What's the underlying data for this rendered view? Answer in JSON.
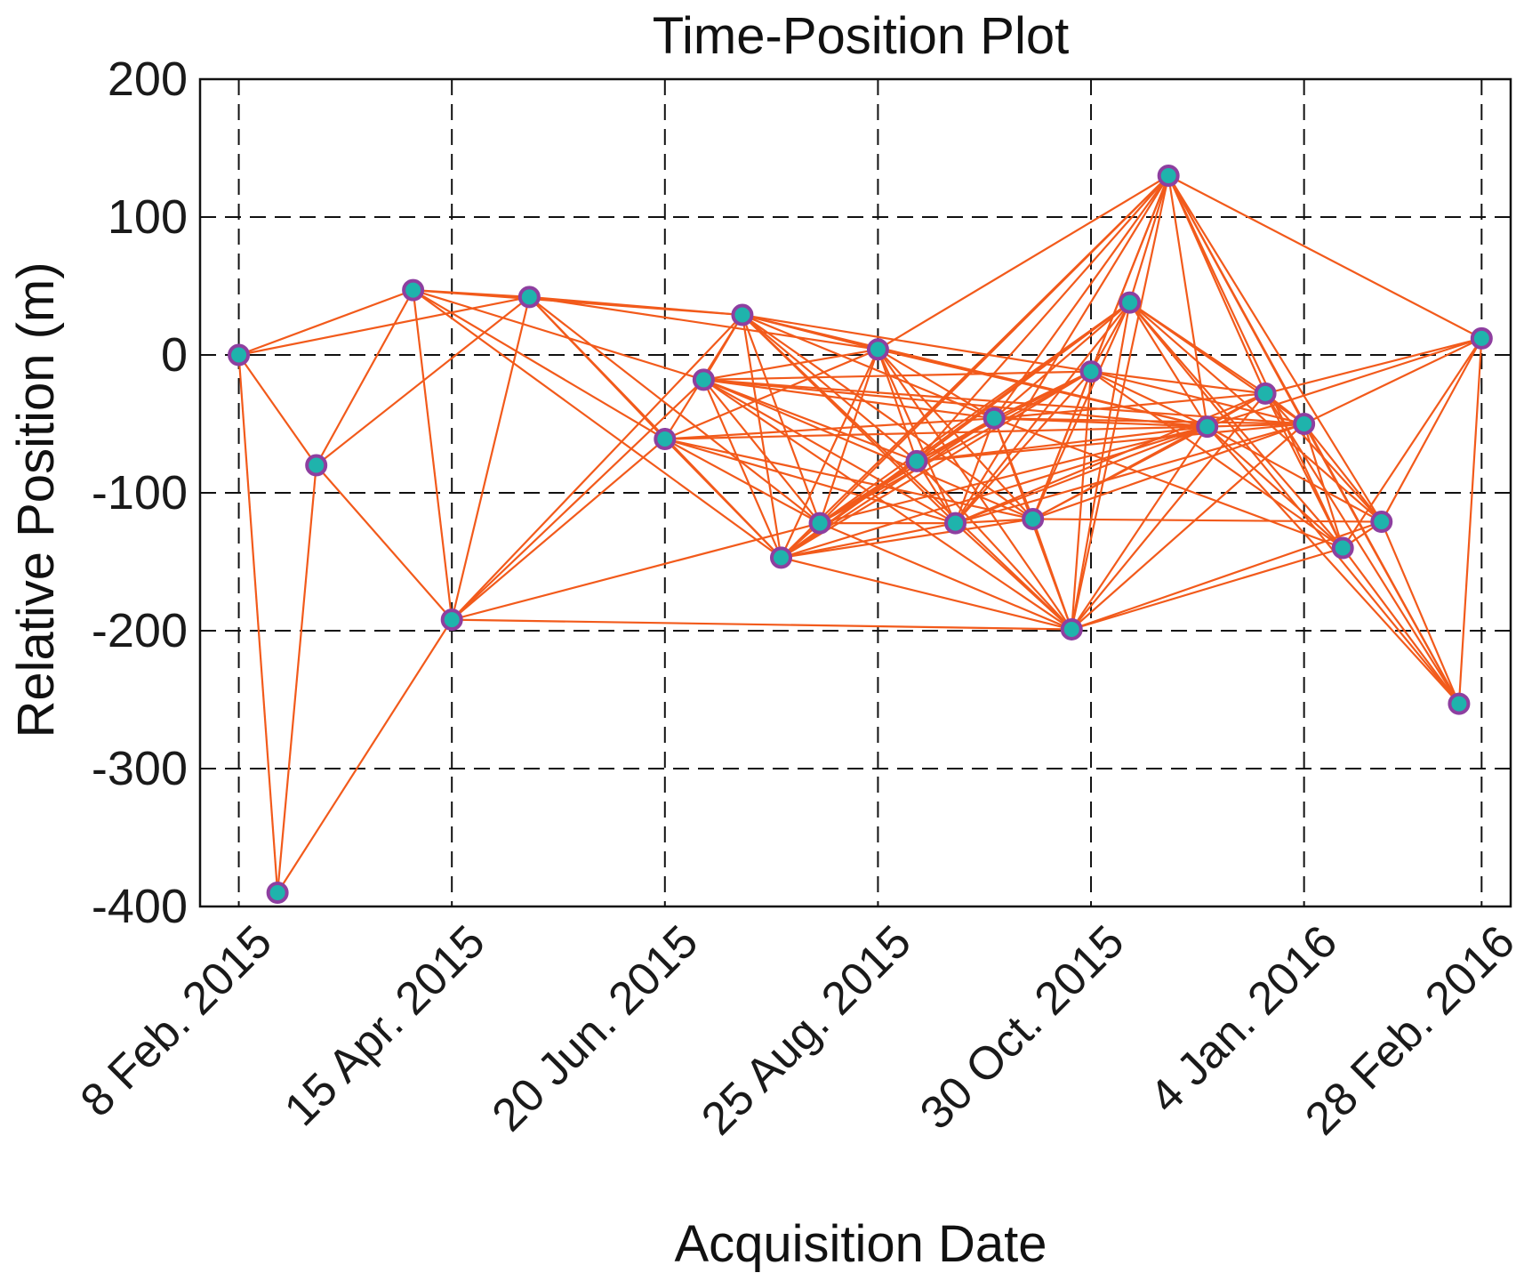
{
  "chart_data": {
    "type": "scatter",
    "title": "Time-Position Plot",
    "xlabel": "Acquisition Date",
    "ylabel": "Relative Position (m)",
    "ylim": [
      -400,
      200
    ],
    "yticks": [
      200,
      100,
      0,
      -100,
      -200,
      -300,
      -400
    ],
    "xlim": [
      "2015-01-27",
      "2016-03-08"
    ],
    "xticks": [
      {
        "date": "2015-02-08",
        "label": "8 Feb. 2015"
      },
      {
        "date": "2015-04-15",
        "label": "15 Apr. 2015"
      },
      {
        "date": "2015-06-20",
        "label": "20 Jun. 2015"
      },
      {
        "date": "2015-08-25",
        "label": "25 Aug. 2015"
      },
      {
        "date": "2015-10-30",
        "label": "30 Oct. 2015"
      },
      {
        "date": "2016-01-04",
        "label": "4 Jan. 2016"
      },
      {
        "date": "2016-02-28",
        "label": "28 Feb. 2016"
      }
    ],
    "grid": true,
    "grid_style": "dashed",
    "points": [
      {
        "date": "2015-02-08",
        "y": 0
      },
      {
        "date": "2015-02-20",
        "y": -390
      },
      {
        "date": "2015-03-04",
        "y": -80
      },
      {
        "date": "2015-04-03",
        "y": 47
      },
      {
        "date": "2015-04-15",
        "y": -192
      },
      {
        "date": "2015-05-09",
        "y": 42
      },
      {
        "date": "2015-06-20",
        "y": -61
      },
      {
        "date": "2015-07-02",
        "y": -18
      },
      {
        "date": "2015-07-14",
        "y": 29
      },
      {
        "date": "2015-07-26",
        "y": -147
      },
      {
        "date": "2015-08-07",
        "y": -122
      },
      {
        "date": "2015-08-25",
        "y": 4
      },
      {
        "date": "2015-09-06",
        "y": -77
      },
      {
        "date": "2015-09-18",
        "y": -122
      },
      {
        "date": "2015-09-30",
        "y": -46
      },
      {
        "date": "2015-10-12",
        "y": -119
      },
      {
        "date": "2015-10-24",
        "y": -199
      },
      {
        "date": "2015-10-30",
        "y": -12
      },
      {
        "date": "2015-11-11",
        "y": 38
      },
      {
        "date": "2015-11-23",
        "y": 130
      },
      {
        "date": "2015-12-05",
        "y": -52
      },
      {
        "date": "2015-12-23",
        "y": -28
      },
      {
        "date": "2016-01-04",
        "y": -50
      },
      {
        "date": "2016-01-16",
        "y": -140
      },
      {
        "date": "2016-01-28",
        "y": -121
      },
      {
        "date": "2016-02-21",
        "y": -253
      },
      {
        "date": "2016-02-28",
        "y": 12
      }
    ],
    "edges": [
      [
        0,
        1
      ],
      [
        0,
        2
      ],
      [
        0,
        3
      ],
      [
        0,
        5
      ],
      [
        1,
        2
      ],
      [
        1,
        4
      ],
      [
        2,
        3
      ],
      [
        2,
        4
      ],
      [
        2,
        5
      ],
      [
        3,
        4
      ],
      [
        3,
        5
      ],
      [
        3,
        6
      ],
      [
        3,
        7
      ],
      [
        3,
        8
      ],
      [
        3,
        9
      ],
      [
        4,
        5
      ],
      [
        4,
        6
      ],
      [
        4,
        7
      ],
      [
        4,
        8
      ],
      [
        4,
        10
      ],
      [
        4,
        16
      ],
      [
        5,
        6
      ],
      [
        5,
        8
      ],
      [
        5,
        9
      ],
      [
        5,
        10
      ],
      [
        5,
        11
      ],
      [
        6,
        8
      ],
      [
        6,
        9
      ],
      [
        6,
        10
      ],
      [
        6,
        11
      ],
      [
        6,
        13
      ],
      [
        6,
        14
      ],
      [
        6,
        15
      ],
      [
        6,
        20
      ],
      [
        7,
        8
      ],
      [
        7,
        9
      ],
      [
        7,
        10
      ],
      [
        7,
        11
      ],
      [
        7,
        12
      ],
      [
        7,
        13
      ],
      [
        7,
        14
      ],
      [
        7,
        15
      ],
      [
        7,
        16
      ],
      [
        7,
        17
      ],
      [
        7,
        20
      ],
      [
        7,
        22
      ],
      [
        8,
        9
      ],
      [
        8,
        10
      ],
      [
        8,
        11
      ],
      [
        8,
        12
      ],
      [
        8,
        13
      ],
      [
        8,
        14
      ],
      [
        8,
        15
      ],
      [
        8,
        16
      ],
      [
        8,
        17
      ],
      [
        8,
        20
      ],
      [
        9,
        10
      ],
      [
        9,
        11
      ],
      [
        9,
        12
      ],
      [
        9,
        13
      ],
      [
        9,
        14
      ],
      [
        9,
        15
      ],
      [
        9,
        16
      ],
      [
        9,
        17
      ],
      [
        9,
        18
      ],
      [
        9,
        19
      ],
      [
        9,
        20
      ],
      [
        10,
        11
      ],
      [
        10,
        12
      ],
      [
        10,
        13
      ],
      [
        10,
        14
      ],
      [
        10,
        16
      ],
      [
        10,
        17
      ],
      [
        10,
        18
      ],
      [
        10,
        19
      ],
      [
        10,
        20
      ],
      [
        11,
        12
      ],
      [
        11,
        13
      ],
      [
        11,
        14
      ],
      [
        11,
        15
      ],
      [
        11,
        16
      ],
      [
        11,
        19
      ],
      [
        11,
        20
      ],
      [
        12,
        13
      ],
      [
        12,
        14
      ],
      [
        12,
        16
      ],
      [
        12,
        17
      ],
      [
        12,
        18
      ],
      [
        12,
        19
      ],
      [
        12,
        20
      ],
      [
        12,
        22
      ],
      [
        13,
        14
      ],
      [
        13,
        15
      ],
      [
        13,
        16
      ],
      [
        13,
        17
      ],
      [
        13,
        18
      ],
      [
        13,
        19
      ],
      [
        13,
        20
      ],
      [
        13,
        21
      ],
      [
        13,
        22
      ],
      [
        14,
        15
      ],
      [
        14,
        16
      ],
      [
        14,
        17
      ],
      [
        14,
        18
      ],
      [
        14,
        19
      ],
      [
        14,
        20
      ],
      [
        14,
        21
      ],
      [
        14,
        22
      ],
      [
        14,
        23
      ],
      [
        15,
        16
      ],
      [
        15,
        17
      ],
      [
        15,
        18
      ],
      [
        15,
        19
      ],
      [
        15,
        20
      ],
      [
        15,
        21
      ],
      [
        15,
        22
      ],
      [
        15,
        24
      ],
      [
        16,
        17
      ],
      [
        16,
        18
      ],
      [
        16,
        19
      ],
      [
        16,
        20
      ],
      [
        16,
        21
      ],
      [
        16,
        22
      ],
      [
        16,
        23
      ],
      [
        16,
        24
      ],
      [
        17,
        18
      ],
      [
        17,
        19
      ],
      [
        17,
        20
      ],
      [
        17,
        21
      ],
      [
        17,
        22
      ],
      [
        17,
        23
      ],
      [
        18,
        19
      ],
      [
        18,
        20
      ],
      [
        18,
        21
      ],
      [
        18,
        22
      ],
      [
        18,
        23
      ],
      [
        18,
        24
      ],
      [
        18,
        25
      ],
      [
        19,
        20
      ],
      [
        19,
        21
      ],
      [
        19,
        22
      ],
      [
        19,
        23
      ],
      [
        19,
        24
      ],
      [
        19,
        25
      ],
      [
        19,
        26
      ],
      [
        20,
        21
      ],
      [
        20,
        22
      ],
      [
        20,
        23
      ],
      [
        20,
        24
      ],
      [
        20,
        25
      ],
      [
        20,
        26
      ],
      [
        21,
        22
      ],
      [
        21,
        23
      ],
      [
        21,
        24
      ],
      [
        21,
        25
      ],
      [
        21,
        26
      ],
      [
        22,
        23
      ],
      [
        22,
        24
      ],
      [
        22,
        25
      ],
      [
        22,
        26
      ],
      [
        23,
        24
      ],
      [
        23,
        25
      ],
      [
        23,
        26
      ],
      [
        24,
        25
      ],
      [
        24,
        26
      ],
      [
        25,
        26
      ]
    ],
    "colors": {
      "edge": "#f25a1b",
      "marker_fill": "#1fb3ac",
      "marker_edge": "#8e3fa0",
      "grid": "#111111",
      "axis": "#111111"
    }
  }
}
